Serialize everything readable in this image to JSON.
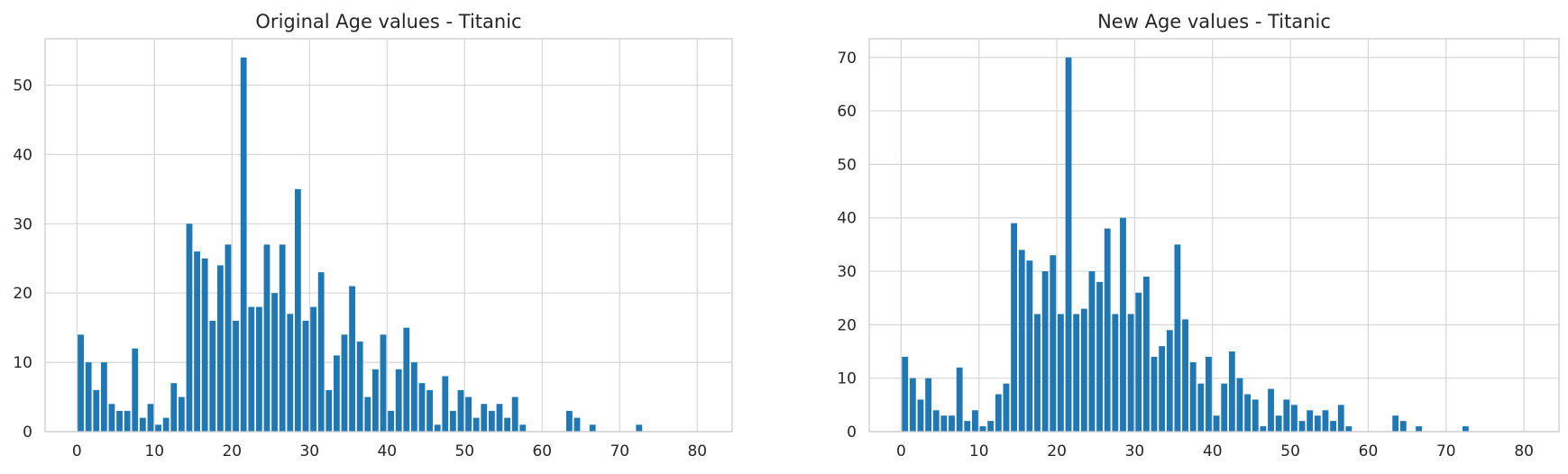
{
  "chart_data": [
    {
      "type": "bar",
      "title": "Original Age values - Titanic",
      "xlabel": "",
      "ylabel": "",
      "xlim": [
        -4.1,
        84.5
      ],
      "ylim": [
        0,
        56.7
      ],
      "xticks": [
        0,
        10,
        20,
        30,
        40,
        50,
        60,
        70,
        80
      ],
      "yticks": [
        0,
        10,
        20,
        30,
        40,
        50
      ],
      "grid": true,
      "color": "#1f77b4",
      "bin_start": 0.0,
      "bin_width": 1.0,
      "values": [
        14,
        10,
        6,
        10,
        4,
        3,
        3,
        12,
        2,
        4,
        1,
        2,
        7,
        5,
        30,
        26,
        25,
        16,
        24,
        27,
        16,
        54,
        18,
        18,
        27,
        20,
        27,
        17,
        35,
        16,
        18,
        23,
        6,
        11,
        14,
        21,
        13,
        5,
        9,
        14,
        3,
        9,
        15,
        10,
        7,
        6,
        1,
        8,
        3,
        6,
        5,
        2,
        4,
        3,
        4,
        2,
        5,
        1,
        0,
        0,
        0,
        0,
        0,
        3,
        2,
        0,
        1,
        0,
        0,
        0,
        0,
        0,
        1
      ]
    },
    {
      "type": "bar",
      "title": "New Age values - Titanic",
      "xlabel": "",
      "ylabel": "",
      "xlim": [
        -4.1,
        84.5
      ],
      "ylim": [
        0,
        73.5
      ],
      "xticks": [
        0,
        10,
        20,
        30,
        40,
        50,
        60,
        70,
        80
      ],
      "yticks": [
        0,
        10,
        20,
        30,
        40,
        50,
        60,
        70
      ],
      "grid": true,
      "color": "#1f77b4",
      "bin_start": 0.0,
      "bin_width": 1.0,
      "values": [
        14,
        10,
        6,
        10,
        4,
        3,
        3,
        12,
        2,
        4,
        1,
        2,
        7,
        9,
        39,
        34,
        32,
        22,
        30,
        33,
        22,
        70,
        22,
        23,
        30,
        28,
        38,
        22,
        40,
        22,
        26,
        29,
        14,
        16,
        19,
        35,
        21,
        13,
        9,
        14,
        3,
        9,
        15,
        10,
        7,
        6,
        1,
        8,
        3,
        6,
        5,
        2,
        4,
        3,
        4,
        2,
        5,
        1,
        0,
        0,
        0,
        0,
        0,
        3,
        2,
        0,
        1,
        0,
        0,
        0,
        0,
        0,
        1
      ]
    }
  ]
}
